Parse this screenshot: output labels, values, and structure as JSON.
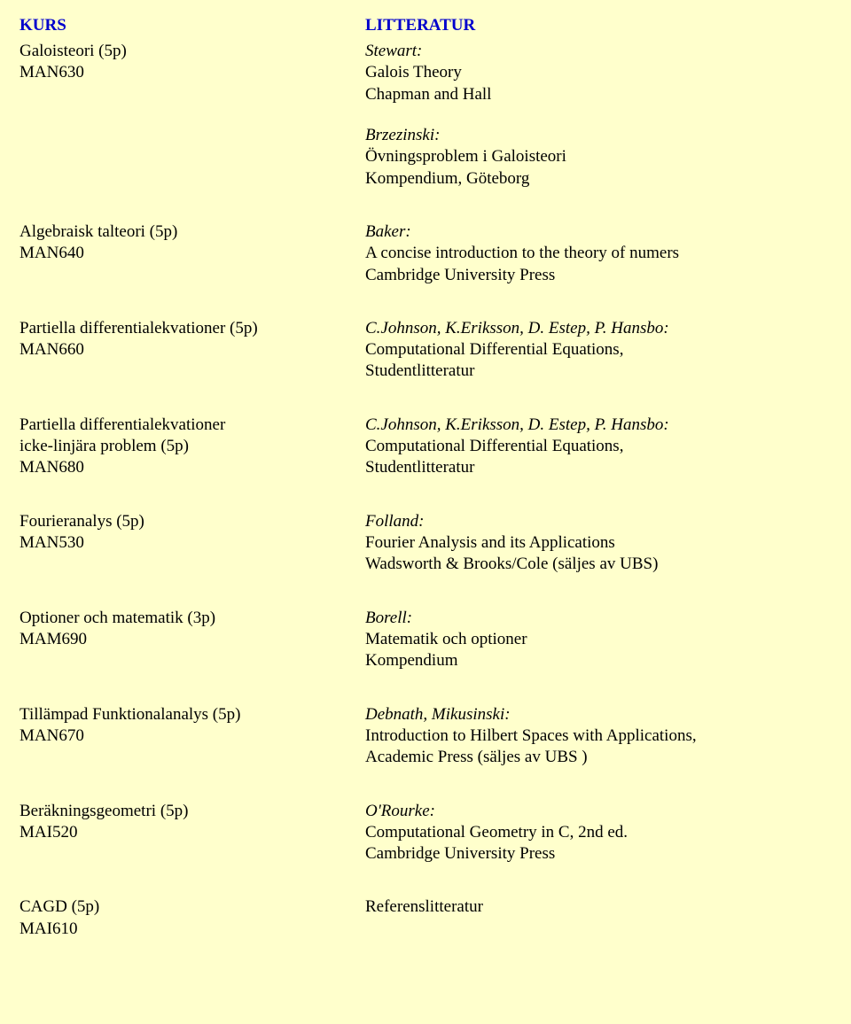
{
  "header": {
    "left": "KURS",
    "right": "LITTERATUR"
  },
  "courses": [
    {
      "left": [
        "Galoisteori (5p)",
        "MAN630"
      ],
      "blocks": [
        {
          "lines": [
            {
              "t": "Stewart:",
              "i": true
            },
            {
              "t": "Galois Theory"
            },
            {
              "t": "Chapman and Hall"
            }
          ]
        },
        {
          "lines": [
            {
              "t": "Brzezinski:",
              "i": true
            },
            {
              "t": "Övningsproblem i Galoisteori"
            },
            {
              "t": "Kompendium, Göteborg"
            }
          ]
        }
      ]
    },
    {
      "left": [
        "Algebraisk talteori (5p)",
        "MAN640"
      ],
      "blocks": [
        {
          "lines": [
            {
              "t": "Baker:",
              "i": true
            },
            {
              "t": "A concise introduction to the theory of numers"
            },
            {
              "t": "Cambridge University Press"
            }
          ]
        }
      ]
    },
    {
      "left": [
        "Partiella differentialekvationer (5p)",
        "MAN660"
      ],
      "blocks": [
        {
          "lines": [
            {
              "t": "C.Johnson, K.Eriksson, D. Estep, P. Hansbo:",
              "i": true
            },
            {
              "t": "Computational Differential Equations,"
            },
            {
              "t": "Studentlitteratur"
            }
          ]
        }
      ]
    },
    {
      "left": [
        "Partiella differentialekvationer",
        "icke-linjära problem (5p)",
        "MAN680"
      ],
      "blocks": [
        {
          "lines": [
            {
              "t": "C.Johnson, K.Eriksson, D. Estep, P. Hansbo:",
              "i": true
            },
            {
              "t": "Computational Differential Equations,"
            },
            {
              "t": "Studentlitteratur"
            }
          ]
        }
      ]
    },
    {
      "left": [
        "Fourieranalys (5p)",
        "MAN530"
      ],
      "blocks": [
        {
          "lines": [
            {
              "t": "Folland:",
              "i": true
            },
            {
              "t": "Fourier Analysis and its Applications"
            },
            {
              "t": "Wadsworth & Brooks/Cole (säljes av UBS)"
            }
          ]
        }
      ]
    },
    {
      "left": [
        "Optioner och matematik (3p)",
        "MAM690"
      ],
      "blocks": [
        {
          "lines": [
            {
              "t": "Borell:",
              "i": true
            },
            {
              "t": "Matematik och optioner"
            },
            {
              "t": "Kompendium"
            }
          ]
        }
      ]
    },
    {
      "left": [
        "Tillämpad Funktionalanalys (5p)",
        "MAN670"
      ],
      "blocks": [
        {
          "lines": [
            {
              "t": "Debnath, Mikusinski:",
              "i": true
            },
            {
              "t": "Introduction to Hilbert Spaces with Applications,"
            },
            {
              "t": "Academic Press (säljes av UBS )"
            }
          ]
        }
      ]
    },
    {
      "left": [
        "Beräkningsgeometri (5p)",
        "MAI520"
      ],
      "blocks": [
        {
          "lines": [
            {
              "t": "O'Rourke:",
              "i": true
            },
            {
              "t": "Computational Geometry in C, 2nd ed."
            },
            {
              "t": "Cambridge University Press"
            }
          ]
        }
      ]
    },
    {
      "left": [
        "CAGD (5p)",
        "MAI610"
      ],
      "blocks": [
        {
          "lines": [
            {
              "t": "Referenslitteratur"
            }
          ]
        }
      ]
    }
  ]
}
